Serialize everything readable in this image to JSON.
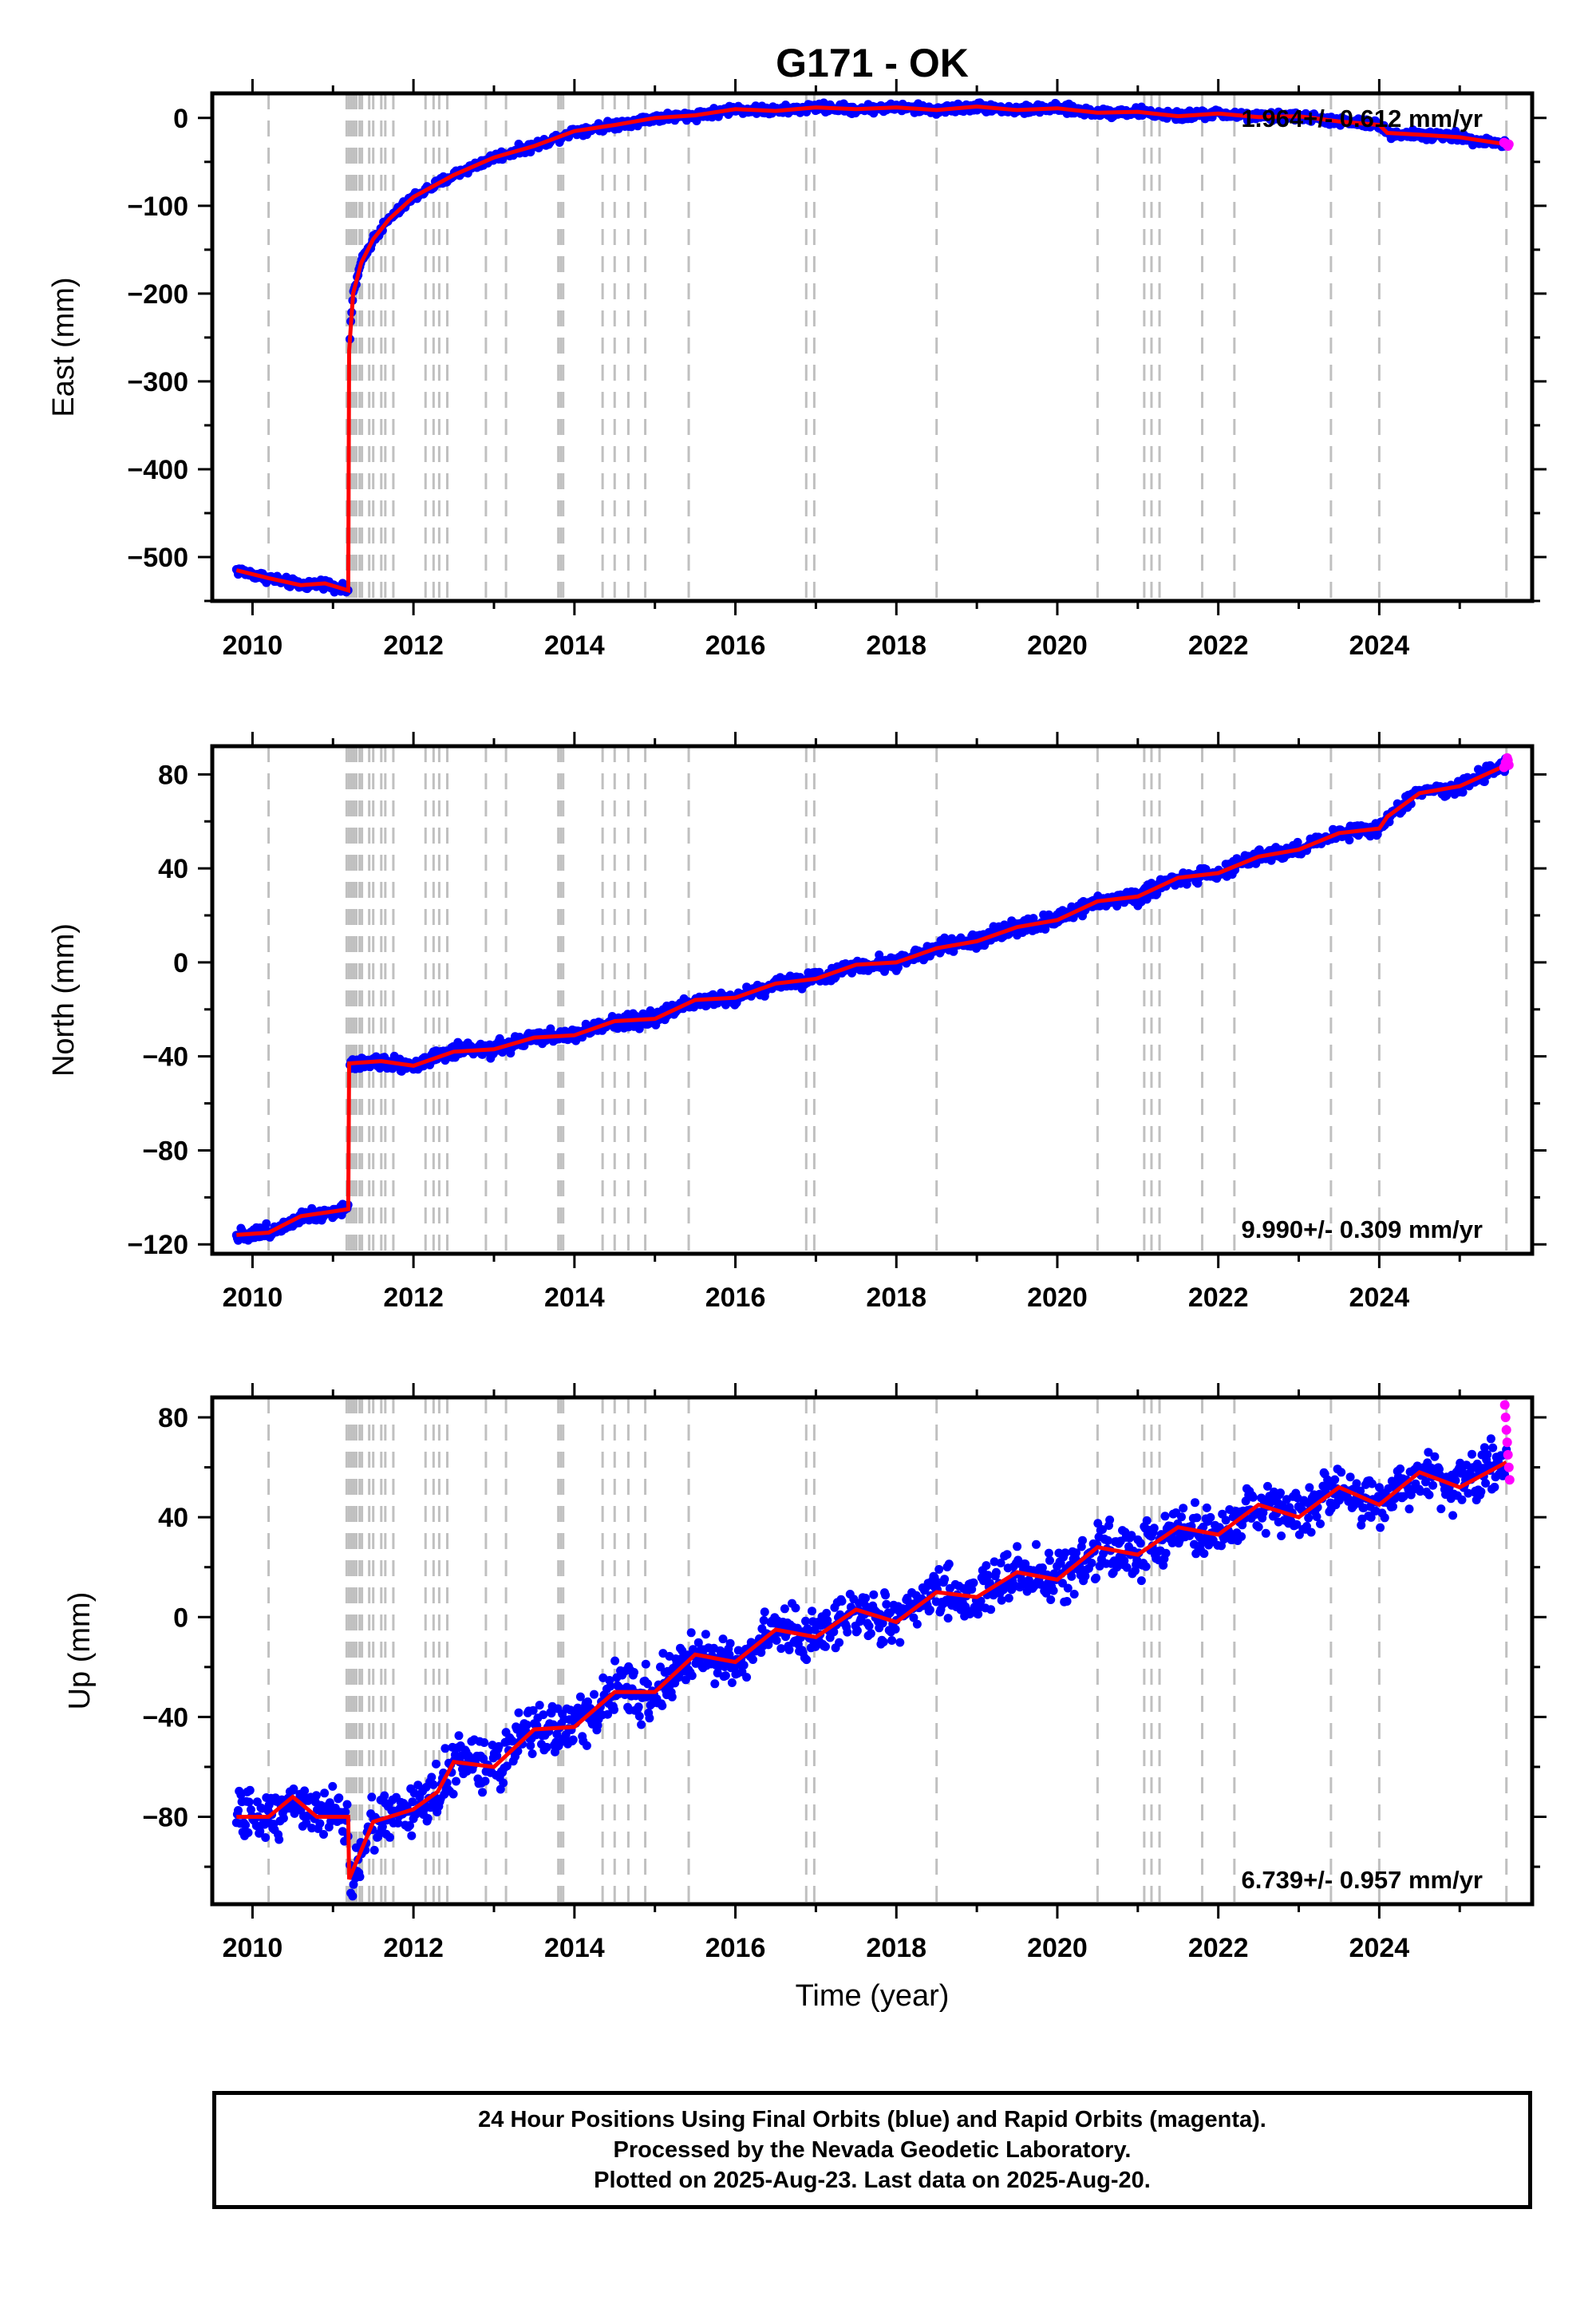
{
  "title": "G171 - OK",
  "xlabel": "Time (year)",
  "footer": {
    "line1": "24 Hour Positions Using Final Orbits (blue) and Rapid Orbits (magenta).",
    "line2": "Processed by the Nevada Geodetic Laboratory.",
    "line3": "Plotted on 2025-Aug-23. Last data on 2025-Aug-20."
  },
  "colors": {
    "final_orbits": "#0000ff",
    "rapid_orbits": "#ff00ff",
    "trend": "#ff0000",
    "event_lines": "#c0c0c0"
  },
  "event_lines_years": [
    2010.2,
    2011.17,
    2011.2,
    2011.23,
    2011.26,
    2011.29,
    2011.33,
    2011.36,
    2011.45,
    2011.5,
    2011.6,
    2011.65,
    2011.75,
    2012.15,
    2012.25,
    2012.32,
    2012.42,
    2012.9,
    2013.15,
    2013.8,
    2013.83,
    2013.86,
    2014.35,
    2014.5,
    2014.67,
    2014.88,
    2015.42,
    2016.88,
    2016.98,
    2018.5,
    2020.5,
    2021.08,
    2021.17,
    2021.27,
    2021.8,
    2022.2,
    2023.4,
    2024.0,
    2025.58
  ],
  "chart_data": [
    {
      "type": "scatter",
      "panel": "East",
      "ylabel": "East (mm)",
      "xlim": [
        2009.5,
        2025.9
      ],
      "ylim": [
        -550,
        28
      ],
      "yticks": [
        0,
        -100,
        -200,
        -300,
        -400,
        -500
      ],
      "xticks": [
        2010,
        2012,
        2014,
        2016,
        2018,
        2020,
        2022,
        2024
      ],
      "rate_label": "1.964+/- 0.612 mm/yr",
      "rate_position": "top-right",
      "noise_mm": 2.5,
      "trend": [
        [
          2009.8,
          -515
        ],
        [
          2010.2,
          -524
        ],
        [
          2010.6,
          -532
        ],
        [
          2010.9,
          -530
        ],
        [
          2011.19,
          -538
        ],
        [
          2011.2,
          -265
        ],
        [
          2011.25,
          -200
        ],
        [
          2011.35,
          -165
        ],
        [
          2011.5,
          -138
        ],
        [
          2011.7,
          -115
        ],
        [
          2012.0,
          -90
        ],
        [
          2012.5,
          -65
        ],
        [
          2013.0,
          -45
        ],
        [
          2013.5,
          -32
        ],
        [
          2014.0,
          -15
        ],
        [
          2014.5,
          -8
        ],
        [
          2015.0,
          0
        ],
        [
          2015.5,
          3
        ],
        [
          2016.0,
          10
        ],
        [
          2016.5,
          8
        ],
        [
          2017.0,
          12
        ],
        [
          2017.5,
          10
        ],
        [
          2018.0,
          12
        ],
        [
          2018.5,
          9
        ],
        [
          2019.0,
          13
        ],
        [
          2019.5,
          9
        ],
        [
          2020.0,
          11
        ],
        [
          2020.5,
          6
        ],
        [
          2021.0,
          7
        ],
        [
          2021.5,
          2
        ],
        [
          2022.0,
          5
        ],
        [
          2022.5,
          1
        ],
        [
          2023.0,
          2
        ],
        [
          2023.5,
          -4
        ],
        [
          2024.0,
          -8
        ],
        [
          2024.1,
          -17
        ],
        [
          2024.5,
          -19
        ],
        [
          2025.0,
          -22
        ],
        [
          2025.58,
          -30
        ]
      ],
      "rapid": [
        [
          2025.55,
          -28
        ],
        [
          2025.57,
          -29
        ],
        [
          2025.59,
          -31
        ],
        [
          2025.6,
          -32
        ],
        [
          2025.61,
          -30
        ]
      ]
    },
    {
      "type": "scatter",
      "panel": "North",
      "ylabel": "North (mm)",
      "xlim": [
        2009.5,
        2025.9
      ],
      "ylim": [
        -124,
        92
      ],
      "yticks": [
        80,
        40,
        0,
        -40,
        -80,
        -120
      ],
      "xticks": [
        2010,
        2012,
        2014,
        2016,
        2018,
        2020,
        2022,
        2024
      ],
      "rate_label": "9.990+/- 0.309 mm/yr",
      "rate_position": "bottom-right",
      "noise_mm": 1.5,
      "trend": [
        [
          2009.8,
          -116
        ],
        [
          2010.2,
          -115
        ],
        [
          2010.6,
          -108
        ],
        [
          2011.0,
          -106
        ],
        [
          2011.19,
          -105
        ],
        [
          2011.2,
          -43
        ],
        [
          2011.6,
          -42
        ],
        [
          2012.0,
          -44
        ],
        [
          2012.5,
          -38
        ],
        [
          2013.0,
          -37
        ],
        [
          2013.5,
          -32
        ],
        [
          2014.0,
          -31
        ],
        [
          2014.5,
          -25
        ],
        [
          2015.0,
          -24
        ],
        [
          2015.5,
          -16
        ],
        [
          2016.0,
          -15
        ],
        [
          2016.5,
          -9
        ],
        [
          2017.0,
          -7
        ],
        [
          2017.5,
          -1
        ],
        [
          2018.0,
          0
        ],
        [
          2018.5,
          6
        ],
        [
          2019.0,
          9
        ],
        [
          2019.5,
          15
        ],
        [
          2020.0,
          18
        ],
        [
          2020.5,
          26
        ],
        [
          2021.0,
          28
        ],
        [
          2021.5,
          36
        ],
        [
          2022.0,
          38
        ],
        [
          2022.5,
          45
        ],
        [
          2023.0,
          48
        ],
        [
          2023.5,
          55
        ],
        [
          2024.0,
          57
        ],
        [
          2024.1,
          62
        ],
        [
          2024.5,
          72
        ],
        [
          2025.0,
          75
        ],
        [
          2025.58,
          84
        ]
      ],
      "rapid": [
        [
          2025.55,
          83
        ],
        [
          2025.57,
          85
        ],
        [
          2025.59,
          87
        ],
        [
          2025.6,
          86
        ],
        [
          2025.61,
          84
        ]
      ]
    },
    {
      "type": "scatter",
      "panel": "Up",
      "ylabel": "Up (mm)",
      "xlim": [
        2009.5,
        2025.9
      ],
      "ylim": [
        -115,
        88
      ],
      "yticks": [
        80,
        40,
        0,
        -40,
        -80
      ],
      "xticks": [
        2010,
        2012,
        2014,
        2016,
        2018,
        2020,
        2022,
        2024
      ],
      "rate_label": "6.739+/- 0.957 mm/yr",
      "rate_position": "bottom-right",
      "noise_mm": 5,
      "trend": [
        [
          2009.8,
          -80
        ],
        [
          2010.2,
          -80
        ],
        [
          2010.5,
          -72
        ],
        [
          2010.8,
          -80
        ],
        [
          2011.19,
          -80
        ],
        [
          2011.2,
          -105
        ],
        [
          2011.5,
          -82
        ],
        [
          2012.0,
          -77
        ],
        [
          2012.3,
          -70
        ],
        [
          2012.5,
          -58
        ],
        [
          2013.0,
          -60
        ],
        [
          2013.5,
          -45
        ],
        [
          2014.0,
          -44
        ],
        [
          2014.5,
          -30
        ],
        [
          2015.0,
          -30
        ],
        [
          2015.5,
          -15
        ],
        [
          2016.0,
          -18
        ],
        [
          2016.5,
          -5
        ],
        [
          2017.0,
          -8
        ],
        [
          2017.5,
          3
        ],
        [
          2018.0,
          -2
        ],
        [
          2018.5,
          10
        ],
        [
          2019.0,
          8
        ],
        [
          2019.5,
          18
        ],
        [
          2020.0,
          15
        ],
        [
          2020.5,
          28
        ],
        [
          2021.0,
          25
        ],
        [
          2021.5,
          36
        ],
        [
          2022.0,
          33
        ],
        [
          2022.5,
          45
        ],
        [
          2023.0,
          40
        ],
        [
          2023.5,
          52
        ],
        [
          2024.0,
          45
        ],
        [
          2024.5,
          58
        ],
        [
          2025.0,
          52
        ],
        [
          2025.58,
          62
        ]
      ],
      "rapid": [
        [
          2025.56,
          85
        ],
        [
          2025.57,
          80
        ],
        [
          2025.58,
          75
        ],
        [
          2025.59,
          70
        ],
        [
          2025.6,
          65
        ],
        [
          2025.61,
          60
        ],
        [
          2025.62,
          55
        ]
      ]
    }
  ]
}
